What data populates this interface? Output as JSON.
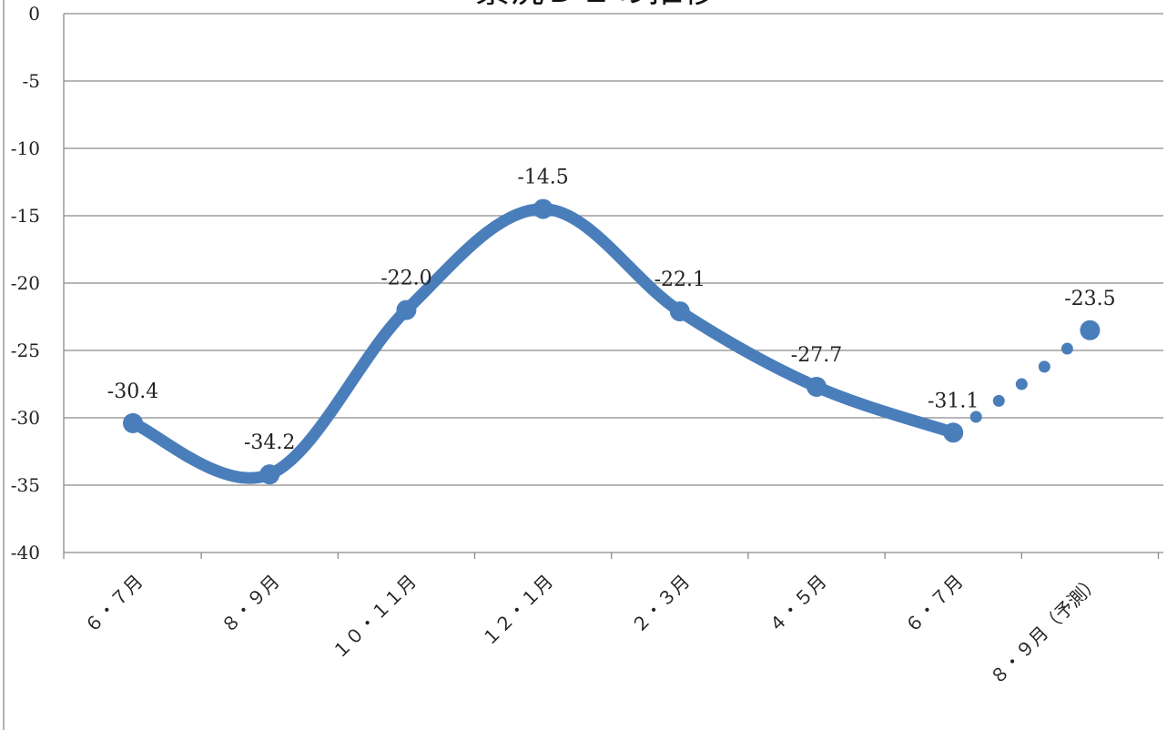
{
  "chart_data": {
    "type": "line",
    "title": "景況ＤＩの推移",
    "categories": [
      "６・７月",
      "８・９月",
      "１０・１１月",
      "１２・１月",
      "２・３月",
      "４・５月",
      "６・７月",
      "８・９月（予測）"
    ],
    "series": [
      {
        "values": [
          -30.4,
          -34.2,
          -22.0,
          -14.5,
          -22.1,
          -27.7,
          -31.1,
          -23.5
        ],
        "labels": [
          "-30.4",
          "-34.2",
          "-22.0",
          "-14.5",
          "-22.1",
          "-27.7",
          "-31.1",
          "-23.5"
        ],
        "forecast_from_index": 6
      }
    ],
    "ylim": [
      -40,
      0
    ],
    "yticks": [
      0,
      -5,
      -10,
      -15,
      -20,
      -25,
      -30,
      -35,
      -40
    ],
    "xlabel": "",
    "ylabel": "",
    "grid": true,
    "line_color": "#4a7ebb"
  }
}
